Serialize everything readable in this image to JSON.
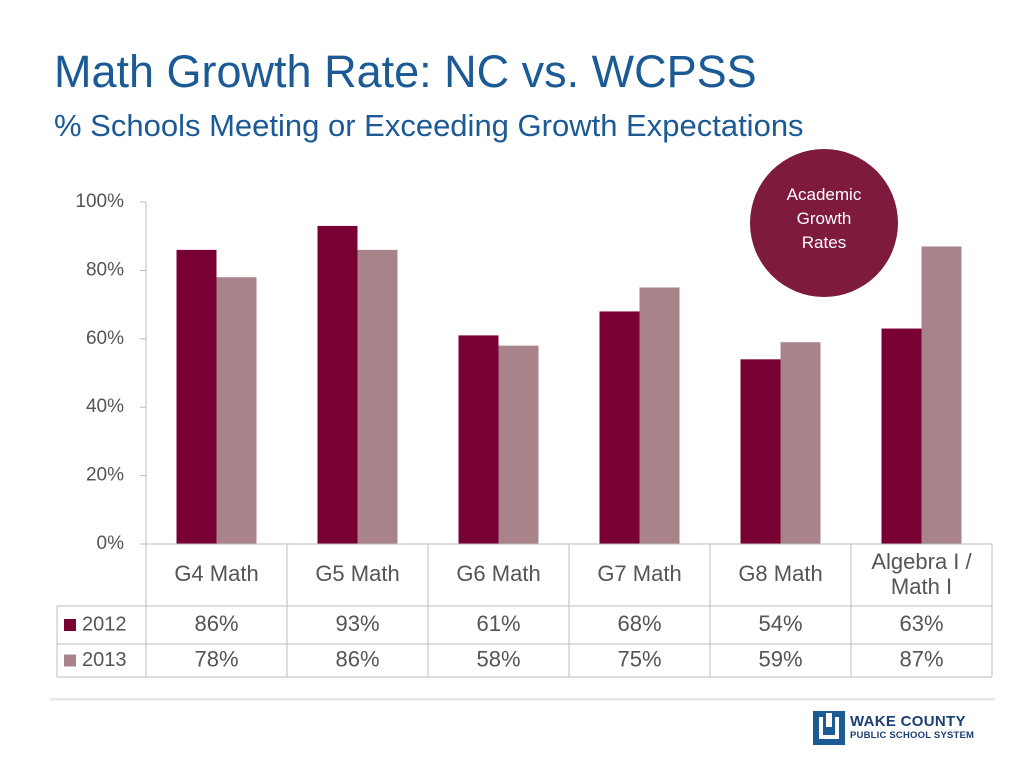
{
  "title": "Math Growth Rate:  NC vs. WCPSS",
  "subtitle": "% Schools Meeting or Exceeding Growth Expectations",
  "badge": {
    "lines": [
      "Academic",
      "Growth",
      "Rates"
    ],
    "color": "#7d1a3d"
  },
  "logo": {
    "line1": "WAKE COUNTY",
    "line2": "PUBLIC SCHOOL SYSTEM",
    "color": "#1c5a96"
  },
  "chart_data": {
    "type": "bar",
    "categories": [
      "G4 Math",
      "G5 Math",
      "G6 Math",
      "G7 Math",
      "G8 Math",
      "Algebra I / Math I"
    ],
    "series": [
      {
        "name": "2012",
        "values": [
          86,
          93,
          61,
          68,
          54,
          63
        ],
        "labels": [
          "86%",
          "93%",
          "61%",
          "68%",
          "54%",
          "63%"
        ],
        "color": "#780032"
      },
      {
        "name": "2013",
        "values": [
          78,
          86,
          58,
          75,
          59,
          87
        ],
        "labels": [
          "78%",
          "86%",
          "58%",
          "75%",
          "59%",
          "87%"
        ],
        "color": "#a8848a"
      }
    ],
    "ylim": [
      0,
      100
    ],
    "yticks": [
      "0%",
      "20%",
      "40%",
      "60%",
      "80%",
      "100%"
    ],
    "grid": false,
    "legend": "data-table",
    "data_table": true
  }
}
